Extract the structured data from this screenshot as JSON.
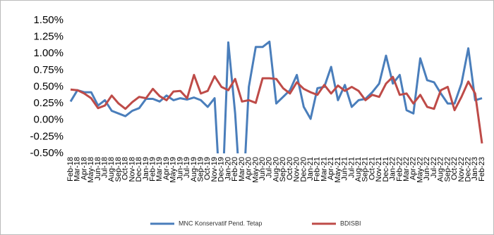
{
  "chart_data": {
    "type": "line",
    "categories": [
      "Feb-18",
      "Mar-18",
      "Apr-18",
      "May-18",
      "Jun-18",
      "Jul-18",
      "Aug-18",
      "Sep-18",
      "Oct-18",
      "Nov-18",
      "Dec-18",
      "Jan-19",
      "Feb-19",
      "Mar-19",
      "Apr-19",
      "May-19",
      "Jun-19",
      "Jul-19",
      "Aug-19",
      "Sep-19",
      "Oct-19",
      "Nov-19",
      "Dec-19",
      "Jan-20",
      "Feb-20",
      "Mar-20",
      "Apr-20",
      "May-20",
      "Jun-20",
      "Jul-20",
      "Aug-20",
      "Sep-20",
      "Oct-20",
      "Nov-20",
      "Dec-20",
      "Jan-21",
      "Feb-21",
      "Mar-21",
      "Apr-21",
      "May-21",
      "Jun-21",
      "Jul-21",
      "Aug-21",
      "Sep-21",
      "Oct-21",
      "Nov-21",
      "Dec-21",
      "Jan-22",
      "Feb-22",
      "Mar-22",
      "Apr-22",
      "May-22",
      "Jun-22",
      "Jul-22",
      "Aug-22",
      "Sep-22",
      "Oct-22",
      "Nov-22",
      "Dec-22",
      "Jan-23",
      "Feb-23"
    ],
    "series": [
      {
        "name": "MNC Konservatif Pend. Tetap",
        "color": "#4a7ebb",
        "values": [
          0.28,
          0.45,
          0.42,
          0.42,
          0.22,
          0.3,
          0.14,
          0.1,
          0.06,
          0.14,
          0.18,
          0.32,
          0.32,
          0.28,
          0.37,
          0.3,
          0.33,
          0.31,
          0.34,
          0.3,
          0.2,
          0.33,
          -1.5,
          1.17,
          0.1,
          -1.5,
          0.5,
          1.1,
          1.1,
          1.18,
          0.25,
          0.35,
          0.45,
          0.68,
          0.2,
          0.02,
          0.48,
          0.5,
          0.8,
          0.3,
          0.53,
          0.2,
          0.3,
          0.32,
          0.42,
          0.55,
          0.97,
          0.55,
          0.68,
          0.15,
          0.1,
          0.93,
          0.6,
          0.57,
          0.4,
          0.25,
          0.25,
          0.55,
          1.08,
          0.3,
          0.33
        ]
      },
      {
        "name": "BDISBI",
        "color": "#be4b48",
        "values": [
          0.46,
          0.45,
          0.4,
          0.33,
          0.18,
          0.22,
          0.37,
          0.25,
          0.17,
          0.27,
          0.35,
          0.33,
          0.47,
          0.36,
          0.3,
          0.43,
          0.44,
          0.33,
          0.68,
          0.4,
          0.44,
          0.66,
          0.5,
          0.45,
          0.62,
          0.28,
          0.3,
          0.26,
          0.63,
          0.63,
          0.62,
          0.48,
          0.4,
          0.57,
          0.47,
          0.42,
          0.38,
          0.53,
          0.4,
          0.52,
          0.44,
          0.5,
          0.44,
          0.3,
          0.38,
          0.35,
          0.55,
          0.65,
          0.38,
          0.4,
          0.25,
          0.38,
          0.2,
          0.17,
          0.45,
          0.5,
          0.15,
          0.35,
          0.58,
          0.4,
          -0.35
        ]
      }
    ],
    "ylim": [
      -0.5,
      1.5
    ],
    "yticks": [
      {
        "value": -0.5,
        "label": "-0.50%"
      },
      {
        "value": -0.25,
        "label": "-0.25%"
      },
      {
        "value": 0,
        "label": "0.00%"
      },
      {
        "value": 0.25,
        "label": "0.25%"
      },
      {
        "value": 0.5,
        "label": "0.50%"
      },
      {
        "value": 0.75,
        "label": "0.75%"
      },
      {
        "value": 1,
        "label": "1.00%"
      },
      {
        "value": 1.25,
        "label": "1.25%"
      },
      {
        "value": 1.5,
        "label": "1.50%"
      }
    ],
    "grid": false,
    "legend": "bottom"
  }
}
